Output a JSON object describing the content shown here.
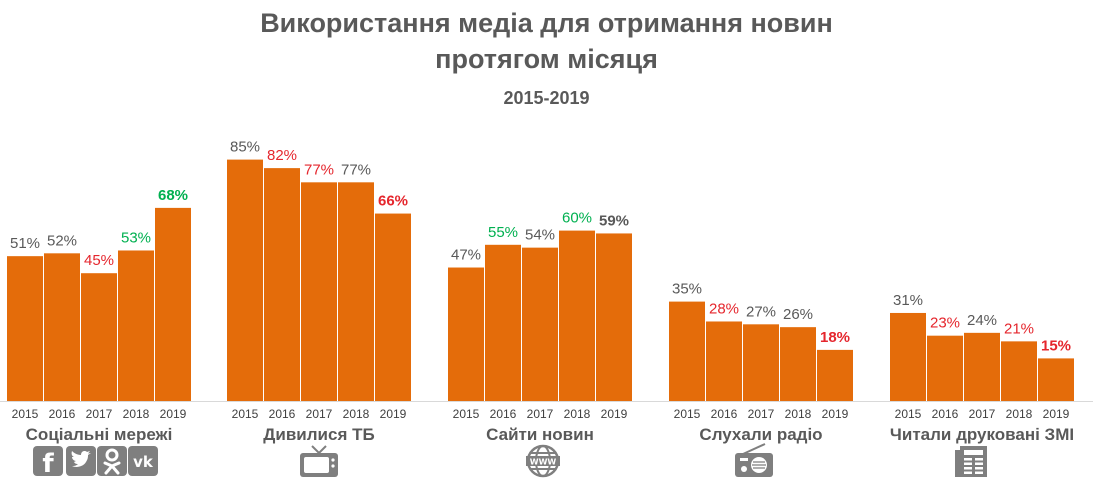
{
  "title_line1": "Використання медіа для отримання новин",
  "title_line2": "протягом місяця",
  "subtitle": "2015-2019",
  "colors": {
    "bar": "#E46C0A",
    "label_neutral": "#595959",
    "label_up": "#00B050",
    "label_down": "#E5262D",
    "icon": "#7F7F7F"
  },
  "chart_data": {
    "type": "bar",
    "years": [
      "2015",
      "2016",
      "2017",
      "2018",
      "2019"
    ],
    "unit": "%",
    "groups": [
      {
        "name": "Соціальні мережі",
        "icons": [
          "facebook-icon",
          "twitter-icon",
          "odnoklassniki-icon",
          "vk-icon"
        ],
        "values": [
          51,
          52,
          45,
          53,
          68
        ],
        "labels": [
          "51%",
          "52%",
          "45%",
          "53%",
          "68%"
        ],
        "label_colors": [
          "neutral",
          "neutral",
          "down",
          "up",
          "up"
        ],
        "bold": [
          false,
          false,
          false,
          false,
          true
        ]
      },
      {
        "name": "Дивилися ТБ",
        "icons": [
          "tv-icon"
        ],
        "values": [
          85,
          82,
          77,
          77,
          66
        ],
        "labels": [
          "85%",
          "82%",
          "77%",
          "77%",
          "66%"
        ],
        "label_colors": [
          "neutral",
          "down",
          "down",
          "neutral",
          "down"
        ],
        "bold": [
          false,
          false,
          false,
          false,
          true
        ]
      },
      {
        "name": "Сайти новин",
        "icons": [
          "www-globe-icon"
        ],
        "values": [
          47,
          55,
          54,
          60,
          59
        ],
        "labels": [
          "47%",
          "55%",
          "54%",
          "60%",
          "59%"
        ],
        "label_colors": [
          "neutral",
          "up",
          "neutral",
          "up",
          "neutral"
        ],
        "bold": [
          false,
          false,
          false,
          false,
          true
        ]
      },
      {
        "name": "Слухали радіо",
        "icons": [
          "radio-icon"
        ],
        "values": [
          35,
          28,
          27,
          26,
          18
        ],
        "labels": [
          "35%",
          "28%",
          "27%",
          "26%",
          "18%"
        ],
        "label_colors": [
          "neutral",
          "down",
          "neutral",
          "neutral",
          "down"
        ],
        "bold": [
          false,
          false,
          false,
          false,
          true
        ]
      },
      {
        "name": "Читали друковані ЗМІ",
        "icons": [
          "newspaper-icon"
        ],
        "values": [
          31,
          23,
          24,
          21,
          15
        ],
        "labels": [
          "31%",
          "23%",
          "24%",
          "21%",
          "15%"
        ],
        "label_colors": [
          "neutral",
          "down",
          "neutral",
          "down",
          "down"
        ],
        "bold": [
          false,
          false,
          false,
          false,
          true
        ]
      }
    ],
    "ylim": [
      0,
      100
    ],
    "grid": false,
    "legend": "none"
  }
}
